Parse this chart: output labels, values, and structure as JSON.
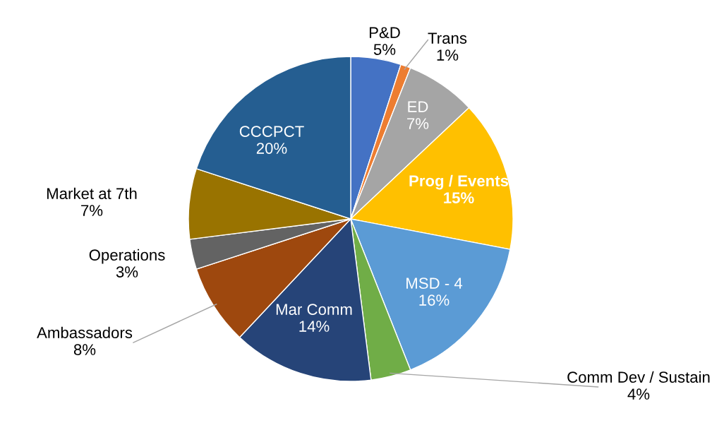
{
  "chart_data": {
    "type": "pie",
    "categories": [
      "P&D",
      "Trans",
      "ED",
      "Prog / Events",
      "MSD - 4",
      "Comm Dev / Sustain",
      "Mar Comm",
      "Ambassadors",
      "Operations",
      "Market at 7th",
      "CCCPCT"
    ],
    "values": [
      5,
      1,
      7,
      15,
      16,
      4,
      14,
      8,
      3,
      7,
      20
    ],
    "value_labels": [
      "5%",
      "1%",
      "7%",
      "15%",
      "16%",
      "4%",
      "14%",
      "8%",
      "3%",
      "7%",
      "20%"
    ],
    "colors": [
      "#4472c4",
      "#ed7d31",
      "#a5a5a5",
      "#ffc000",
      "#5b9bd5",
      "#70ad47",
      "#264478",
      "#9e480e",
      "#636363",
      "#997300",
      "#255e91"
    ],
    "legend": false
  }
}
